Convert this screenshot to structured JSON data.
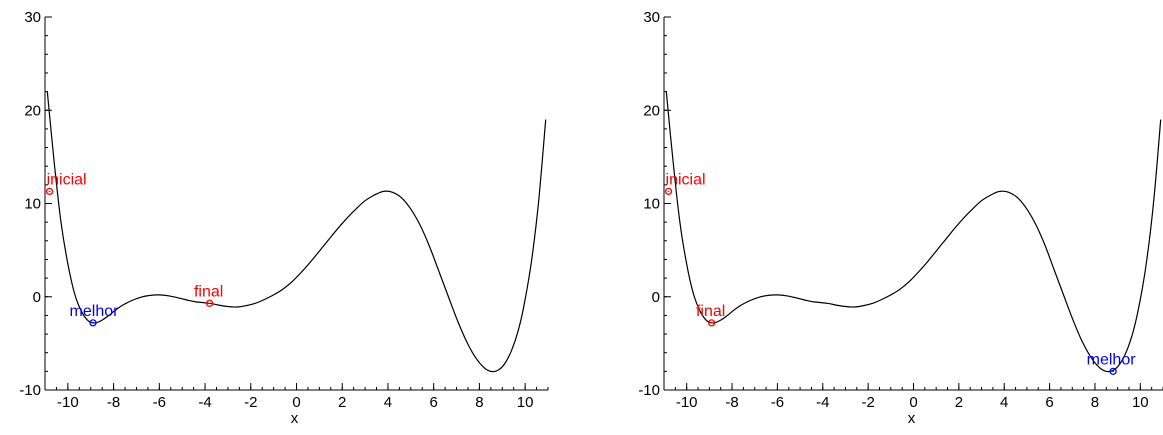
{
  "colors": {
    "curve": "#000000",
    "highlight_red": "#ff0000",
    "highlight_blue": "#0000ff"
  },
  "chart_data": [
    {
      "type": "line",
      "xlabel": "x",
      "ylabel": "",
      "xlim": [
        -11,
        11
      ],
      "ylim": [
        -10,
        30
      ],
      "x_ticks": [
        -10,
        -8,
        -6,
        -4,
        -2,
        0,
        2,
        4,
        6,
        8,
        10
      ],
      "y_ticks": [
        -10,
        0,
        10,
        20,
        30
      ],
      "grid": false,
      "series": [
        {
          "points": [
            [
              -10.9,
              22
            ],
            [
              -10.6,
              14.5
            ],
            [
              -10.3,
              8
            ],
            [
              -10,
              3.5
            ],
            [
              -9.7,
              0.3
            ],
            [
              -9.4,
              -1.6
            ],
            [
              -9.1,
              -2.6
            ],
            [
              -8.8,
              -2.8
            ],
            [
              -8.5,
              -2.5
            ],
            [
              -8.2,
              -2
            ],
            [
              -7.9,
              -1.4
            ],
            [
              -7.6,
              -0.9
            ],
            [
              -7.2,
              -0.4
            ],
            [
              -6.8,
              -0.05
            ],
            [
              -6.4,
              0.15
            ],
            [
              -6.0,
              0.2
            ],
            [
              -5.6,
              0.1
            ],
            [
              -5.2,
              -0.1
            ],
            [
              -4.8,
              -0.35
            ],
            [
              -4.4,
              -0.55
            ],
            [
              -3.8,
              -0.7
            ],
            [
              -3.4,
              -0.9
            ],
            [
              -3.0,
              -1.05
            ],
            [
              -2.6,
              -1.1
            ],
            [
              -2.2,
              -0.95
            ],
            [
              -1.8,
              -0.7
            ],
            [
              -1.4,
              -0.3
            ],
            [
              -1.0,
              0.2
            ],
            [
              -0.6,
              0.8
            ],
            [
              -0.2,
              1.6
            ],
            [
              0.2,
              2.6
            ],
            [
              0.6,
              3.7
            ],
            [
              1.0,
              4.9
            ],
            [
              1.4,
              6.1
            ],
            [
              1.8,
              7.3
            ],
            [
              2.2,
              8.4
            ],
            [
              2.6,
              9.4
            ],
            [
              3.0,
              10.3
            ],
            [
              3.4,
              10.9
            ],
            [
              3.8,
              11.3
            ],
            [
              4.2,
              11.2
            ],
            [
              4.6,
              10.6
            ],
            [
              5.0,
              9.4
            ],
            [
              5.4,
              7.7
            ],
            [
              5.8,
              5.5
            ],
            [
              6.2,
              2.9
            ],
            [
              6.6,
              0.3
            ],
            [
              7.0,
              -2.3
            ],
            [
              7.4,
              -4.6
            ],
            [
              7.8,
              -6.4
            ],
            [
              8.2,
              -7.6
            ],
            [
              8.5,
              -8.0
            ],
            [
              8.8,
              -7.9
            ],
            [
              9.1,
              -7.2
            ],
            [
              9.4,
              -5.8
            ],
            [
              9.7,
              -3.6
            ],
            [
              10.0,
              -0.3
            ],
            [
              10.3,
              4.2
            ],
            [
              10.6,
              10.5
            ],
            [
              10.9,
              19
            ]
          ]
        }
      ],
      "annotations": [
        {
          "label": "inicial",
          "x": -10.8,
          "y": 11.3,
          "color": "#ff0000"
        },
        {
          "label": "final",
          "x": -3.8,
          "y": -0.7,
          "color": "#ff0000"
        },
        {
          "label": "melhor",
          "x": -8.9,
          "y": -2.8,
          "color": "#0000ff"
        }
      ]
    },
    {
      "type": "line",
      "xlabel": "x",
      "ylabel": "",
      "xlim": [
        -11,
        11
      ],
      "ylim": [
        -10,
        30
      ],
      "x_ticks": [
        -10,
        -8,
        -6,
        -4,
        -2,
        0,
        2,
        4,
        6,
        8,
        10
      ],
      "y_ticks": [
        -10,
        0,
        10,
        20,
        30
      ],
      "grid": false,
      "series": [
        {
          "points": [
            [
              -10.9,
              22
            ],
            [
              -10.6,
              14.5
            ],
            [
              -10.3,
              8
            ],
            [
              -10,
              3.5
            ],
            [
              -9.7,
              0.3
            ],
            [
              -9.4,
              -1.6
            ],
            [
              -9.1,
              -2.6
            ],
            [
              -8.8,
              -2.8
            ],
            [
              -8.5,
              -2.5
            ],
            [
              -8.2,
              -2
            ],
            [
              -7.9,
              -1.4
            ],
            [
              -7.6,
              -0.9
            ],
            [
              -7.2,
              -0.4
            ],
            [
              -6.8,
              -0.05
            ],
            [
              -6.4,
              0.15
            ],
            [
              -6.0,
              0.2
            ],
            [
              -5.6,
              0.1
            ],
            [
              -5.2,
              -0.1
            ],
            [
              -4.8,
              -0.35
            ],
            [
              -4.4,
              -0.55
            ],
            [
              -3.8,
              -0.7
            ],
            [
              -3.4,
              -0.9
            ],
            [
              -3.0,
              -1.05
            ],
            [
              -2.6,
              -1.1
            ],
            [
              -2.2,
              -0.95
            ],
            [
              -1.8,
              -0.7
            ],
            [
              -1.4,
              -0.3
            ],
            [
              -1.0,
              0.2
            ],
            [
              -0.6,
              0.8
            ],
            [
              -0.2,
              1.6
            ],
            [
              0.2,
              2.6
            ],
            [
              0.6,
              3.7
            ],
            [
              1.0,
              4.9
            ],
            [
              1.4,
              6.1
            ],
            [
              1.8,
              7.3
            ],
            [
              2.2,
              8.4
            ],
            [
              2.6,
              9.4
            ],
            [
              3.0,
              10.3
            ],
            [
              3.4,
              10.9
            ],
            [
              3.8,
              11.3
            ],
            [
              4.2,
              11.2
            ],
            [
              4.6,
              10.6
            ],
            [
              5.0,
              9.4
            ],
            [
              5.4,
              7.7
            ],
            [
              5.8,
              5.5
            ],
            [
              6.2,
              2.9
            ],
            [
              6.6,
              0.3
            ],
            [
              7.0,
              -2.3
            ],
            [
              7.4,
              -4.6
            ],
            [
              7.8,
              -6.4
            ],
            [
              8.2,
              -7.6
            ],
            [
              8.5,
              -8.0
            ],
            [
              8.8,
              -7.9
            ],
            [
              9.1,
              -7.2
            ],
            [
              9.4,
              -5.8
            ],
            [
              9.7,
              -3.6
            ],
            [
              10.0,
              -0.3
            ],
            [
              10.3,
              4.2
            ],
            [
              10.6,
              10.5
            ],
            [
              10.9,
              19
            ]
          ]
        }
      ],
      "annotations": [
        {
          "label": "inicial",
          "x": -10.8,
          "y": 11.3,
          "color": "#ff0000"
        },
        {
          "label": "final",
          "x": -8.9,
          "y": -2.8,
          "color": "#ff0000"
        },
        {
          "label": "melhor",
          "x": 8.8,
          "y": -8.0,
          "color": "#0000ff"
        }
      ]
    }
  ]
}
